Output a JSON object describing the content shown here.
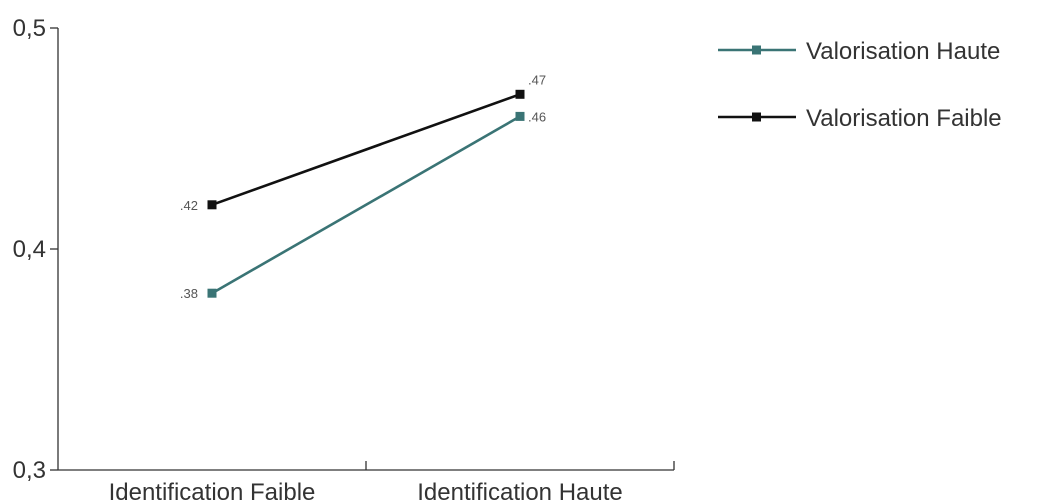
{
  "chart_data": {
    "type": "line",
    "title": "",
    "xlabel": "",
    "ylabel": "",
    "categories": [
      "Identification Faible",
      "Identification Haute"
    ],
    "ylim": [
      0.3,
      0.5
    ],
    "yticks": [
      0.3,
      0.4,
      0.5
    ],
    "ytick_labels": [
      "0,3",
      "0,4",
      "0,5"
    ],
    "grid": false,
    "legend_position": "top-right",
    "series": [
      {
        "name": "Valorisation Haute",
        "values": [
          0.38,
          0.46
        ],
        "labels": [
          ".38",
          ".46"
        ],
        "color": "#3a7475"
      },
      {
        "name": "Valorisation Faible",
        "values": [
          0.42,
          0.47
        ],
        "labels": [
          ".42",
          ".47"
        ],
        "color": "#111111"
      }
    ]
  }
}
